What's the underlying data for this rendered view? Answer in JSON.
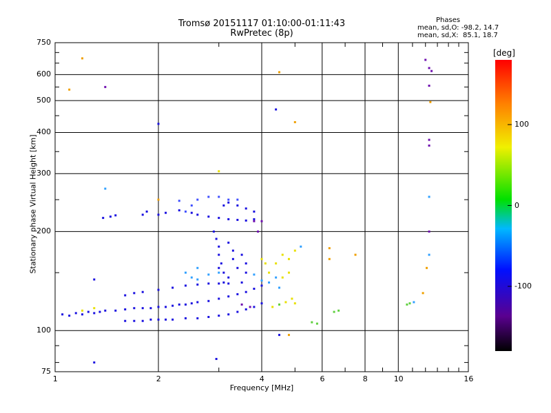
{
  "chart_data": {
    "type": "scatter",
    "title_line1": "Tromsø 20151117 01:10:00-01:11:43",
    "title_line2": "RwPretec (8p)",
    "xlabel": "Frequency [MHz]",
    "ylabel": "Stationary phase Virtual Height [km]",
    "x_scale": "log",
    "y_scale": "log",
    "xlim": [
      1,
      16
    ],
    "ylim": [
      75,
      750
    ],
    "xticks": [
      1,
      2,
      4,
      6,
      8,
      10,
      16
    ],
    "yticks": [
      75,
      100,
      200,
      300,
      400,
      500,
      600,
      750
    ],
    "grid": true,
    "colorbar": {
      "label": "[deg]",
      "range": [
        -180,
        180
      ],
      "ticks": [
        100,
        0,
        -100
      ]
    },
    "phase_info": {
      "header": "Phases",
      "line_o": "mean, sd,O: -98.2, 14.7",
      "line_x": "mean, sd,X:  85.1, 18.7"
    },
    "series": [
      {
        "name": "",
        "color": "#1a10e0",
        "points": [
          [
            1.05,
            112
          ],
          [
            1.1,
            111
          ],
          [
            1.15,
            113
          ],
          [
            1.2,
            112
          ],
          [
            1.25,
            114
          ],
          [
            1.3,
            113
          ],
          [
            1.35,
            114
          ],
          [
            1.4,
            115
          ],
          [
            1.5,
            115
          ],
          [
            1.6,
            116
          ],
          [
            1.7,
            117
          ],
          [
            1.8,
            117
          ],
          [
            1.9,
            117
          ],
          [
            2.0,
            118
          ],
          [
            2.1,
            118
          ],
          [
            2.2,
            119
          ],
          [
            2.3,
            120
          ],
          [
            2.4,
            120
          ],
          [
            2.5,
            121
          ],
          [
            2.6,
            122
          ],
          [
            2.8,
            123
          ],
          [
            3.0,
            125
          ],
          [
            3.2,
            127
          ],
          [
            3.4,
            129
          ],
          [
            3.6,
            131
          ],
          [
            3.8,
            134
          ],
          [
            4.0,
            137
          ],
          [
            1.6,
            107
          ],
          [
            1.7,
            107
          ],
          [
            1.8,
            107
          ],
          [
            1.9,
            108
          ],
          [
            2.0,
            108
          ],
          [
            2.1,
            108
          ],
          [
            2.2,
            108
          ],
          [
            2.4,
            109
          ],
          [
            2.6,
            109
          ],
          [
            2.8,
            110
          ],
          [
            3.0,
            111
          ],
          [
            3.2,
            112
          ],
          [
            3.4,
            114
          ],
          [
            3.6,
            116
          ],
          [
            3.8,
            118
          ],
          [
            4.0,
            121
          ],
          [
            1.6,
            128
          ],
          [
            1.7,
            130
          ],
          [
            1.8,
            131
          ],
          [
            2.0,
            133
          ],
          [
            2.2,
            135
          ],
          [
            2.4,
            137
          ],
          [
            2.6,
            138
          ],
          [
            2.8,
            139
          ],
          [
            3.0,
            139
          ],
          [
            3.2,
            139
          ],
          [
            1.8,
            225
          ],
          [
            1.85,
            230
          ],
          [
            2.0,
            225
          ],
          [
            2.1,
            228
          ],
          [
            2.3,
            232
          ],
          [
            2.5,
            228
          ],
          [
            2.6,
            225
          ],
          [
            2.8,
            222
          ],
          [
            3.0,
            220
          ],
          [
            3.2,
            218
          ],
          [
            3.4,
            217
          ],
          [
            3.6,
            216
          ],
          [
            3.8,
            218
          ],
          [
            2.9,
            200
          ],
          [
            2.95,
            190
          ],
          [
            3.0,
            180
          ],
          [
            3.0,
            170
          ],
          [
            3.05,
            160
          ],
          [
            3.1,
            150
          ],
          [
            3.1,
            140
          ],
          [
            3.2,
            185
          ],
          [
            3.3,
            175
          ],
          [
            3.3,
            165
          ],
          [
            3.4,
            155
          ],
          [
            3.5,
            170
          ],
          [
            3.6,
            160
          ],
          [
            3.6,
            150
          ],
          [
            3.5,
            140
          ],
          [
            3.0,
            155
          ],
          [
            3.2,
            145
          ],
          [
            3.1,
            240
          ],
          [
            3.2,
            245
          ],
          [
            3.4,
            240
          ],
          [
            3.6,
            235
          ],
          [
            3.8,
            230
          ],
          [
            1.38,
            220
          ],
          [
            1.45,
            222
          ],
          [
            1.5,
            224
          ],
          [
            1.3,
            80
          ],
          [
            1.3,
            143
          ],
          [
            2.0,
            425
          ],
          [
            4.4,
            470
          ],
          [
            2.95,
            82
          ],
          [
            4.5,
            97
          ]
        ]
      },
      {
        "name": "",
        "color": "#4050ff",
        "points": [
          [
            2.4,
            230
          ],
          [
            2.5,
            240
          ],
          [
            2.6,
            250
          ],
          [
            2.8,
            255
          ],
          [
            3.0,
            255
          ],
          [
            3.2,
            250
          ],
          [
            3.4,
            250
          ],
          [
            2.3,
            248
          ]
        ]
      },
      {
        "name": "",
        "color": "#30a0ff",
        "points": [
          [
            2.5,
            145
          ],
          [
            2.6,
            143
          ],
          [
            2.8,
            148
          ],
          [
            3.0,
            150
          ],
          [
            2.4,
            150
          ],
          [
            2.6,
            155
          ],
          [
            3.8,
            148
          ],
          [
            4.0,
            142
          ],
          [
            4.2,
            140
          ],
          [
            4.4,
            145
          ],
          [
            4.5,
            135
          ],
          [
            1.4,
            270
          ],
          [
            5.2,
            180
          ],
          [
            11.1,
            122
          ],
          [
            12.3,
            255
          ],
          [
            12.3,
            170
          ]
        ]
      },
      {
        "name": "",
        "color": "#e8e000",
        "points": [
          [
            4.0,
            165
          ],
          [
            4.1,
            160
          ],
          [
            4.2,
            150
          ],
          [
            4.4,
            160
          ],
          [
            4.6,
            170
          ],
          [
            4.8,
            165
          ],
          [
            5.0,
            175
          ],
          [
            4.6,
            145
          ],
          [
            4.8,
            150
          ],
          [
            4.3,
            118
          ],
          [
            4.5,
            120
          ],
          [
            4.7,
            122
          ],
          [
            5.0,
            121
          ],
          [
            4.9,
            125
          ],
          [
            1.3,
            117
          ],
          [
            1.2,
            115
          ],
          [
            3.0,
            305
          ]
        ]
      },
      {
        "name": "",
        "color": "#60d040",
        "points": [
          [
            5.6,
            106
          ],
          [
            5.8,
            105
          ],
          [
            6.5,
            114
          ],
          [
            6.7,
            115
          ],
          [
            10.6,
            120
          ],
          [
            10.8,
            121
          ],
          [
            4.5,
            120
          ]
        ]
      },
      {
        "name": "",
        "color": "#f0a000",
        "points": [
          [
            1.2,
            672
          ],
          [
            1.1,
            540
          ],
          [
            6.3,
            178
          ],
          [
            6.3,
            165
          ],
          [
            7.5,
            170
          ],
          [
            5.0,
            430
          ],
          [
            4.5,
            610
          ],
          [
            4.8,
            97
          ],
          [
            12.1,
            155
          ],
          [
            12.4,
            495
          ],
          [
            11.8,
            130
          ],
          [
            2.0,
            250
          ]
        ]
      },
      {
        "name": "",
        "color": "#7010b0",
        "points": [
          [
            12.0,
            665
          ],
          [
            12.3,
            628
          ],
          [
            12.5,
            615
          ],
          [
            12.3,
            555
          ],
          [
            12.3,
            380
          ],
          [
            12.3,
            365
          ],
          [
            12.3,
            200
          ],
          [
            1.4,
            550
          ],
          [
            3.8,
            215
          ],
          [
            3.9,
            200
          ],
          [
            4.0,
            215
          ],
          [
            3.5,
            120
          ],
          [
            3.7,
            118
          ]
        ]
      }
    ]
  }
}
